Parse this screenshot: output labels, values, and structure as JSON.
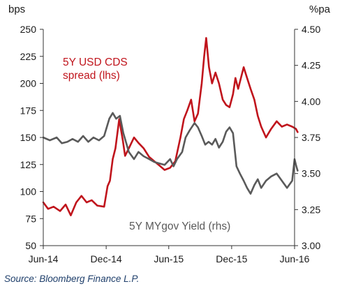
{
  "chart_data": {
    "type": "line",
    "left_unit": "bps",
    "right_unit": "%pa",
    "left_axis": {
      "min": 50,
      "max": 250,
      "ticks": [
        50,
        75,
        100,
        125,
        150,
        175,
        200,
        225,
        250
      ]
    },
    "right_axis": {
      "min": 3.0,
      "max": 4.5,
      "ticks": [
        "3.00",
        "3.25",
        "3.50",
        "3.75",
        "4.00",
        "4.25",
        "4.50"
      ]
    },
    "x_axis": {
      "start": "2014-06",
      "end": "2016-06",
      "ticks": [
        {
          "date": "2014-06",
          "label": "Jun-14"
        },
        {
          "date": "2014-12",
          "label": "Dec-14"
        },
        {
          "date": "2015-06",
          "label": "Jun-15"
        },
        {
          "date": "2015-12",
          "label": "Dec-15"
        },
        {
          "date": "2016-06",
          "label": "Jun-16"
        }
      ]
    },
    "grid": false,
    "series": [
      {
        "name": "5Y USD CDS spread (lhs)",
        "label_lines": [
          "5Y USD CDS",
          "spread (lhs)"
        ],
        "axis": "left",
        "color": "#c0141c",
        "points": [
          [
            "2014-06-01",
            90
          ],
          [
            "2014-06-15",
            84
          ],
          [
            "2014-07-01",
            86
          ],
          [
            "2014-07-20",
            82
          ],
          [
            "2014-08-05",
            88
          ],
          [
            "2014-08-20",
            78
          ],
          [
            "2014-09-05",
            90
          ],
          [
            "2014-09-20",
            96
          ],
          [
            "2014-10-05",
            90
          ],
          [
            "2014-10-20",
            92
          ],
          [
            "2014-11-05",
            87
          ],
          [
            "2014-11-25",
            86
          ],
          [
            "2014-12-05",
            105
          ],
          [
            "2014-12-12",
            110
          ],
          [
            "2014-12-20",
            130
          ],
          [
            "2014-12-28",
            140
          ],
          [
            "2015-01-08",
            167
          ],
          [
            "2015-01-18",
            148
          ],
          [
            "2015-01-25",
            133
          ],
          [
            "2015-02-05",
            140
          ],
          [
            "2015-02-20",
            150
          ],
          [
            "2015-03-05",
            145
          ],
          [
            "2015-03-20",
            140
          ],
          [
            "2015-04-05",
            132
          ],
          [
            "2015-04-20",
            128
          ],
          [
            "2015-05-05",
            124
          ],
          [
            "2015-05-20",
            120
          ],
          [
            "2015-06-05",
            122
          ],
          [
            "2015-06-20",
            128
          ],
          [
            "2015-07-05",
            150
          ],
          [
            "2015-07-15",
            167
          ],
          [
            "2015-07-25",
            175
          ],
          [
            "2015-08-05",
            185
          ],
          [
            "2015-08-15",
            165
          ],
          [
            "2015-08-25",
            172
          ],
          [
            "2015-09-05",
            200
          ],
          [
            "2015-09-12",
            225
          ],
          [
            "2015-09-18",
            242
          ],
          [
            "2015-09-26",
            215
          ],
          [
            "2015-10-05",
            200
          ],
          [
            "2015-10-15",
            210
          ],
          [
            "2015-10-25",
            200
          ],
          [
            "2015-11-05",
            185
          ],
          [
            "2015-11-15",
            180
          ],
          [
            "2015-11-25",
            178
          ],
          [
            "2015-12-05",
            190
          ],
          [
            "2015-12-12",
            205
          ],
          [
            "2015-12-20",
            195
          ],
          [
            "2016-01-05",
            215
          ],
          [
            "2016-01-15",
            205
          ],
          [
            "2016-01-25",
            195
          ],
          [
            "2016-02-05",
            185
          ],
          [
            "2016-02-15",
            170
          ],
          [
            "2016-02-25",
            160
          ],
          [
            "2016-03-10",
            150
          ],
          [
            "2016-03-25",
            158
          ],
          [
            "2016-04-10",
            165
          ],
          [
            "2016-04-25",
            160
          ],
          [
            "2016-05-10",
            162
          ],
          [
            "2016-05-25",
            160
          ],
          [
            "2016-06-05",
            158
          ],
          [
            "2016-06-10",
            155
          ]
        ]
      },
      {
        "name": "5Y MYgov Yield (rhs)",
        "label_lines": [
          "5Y MYgov Yield (rhs)"
        ],
        "axis": "right",
        "color": "#5a5a5a",
        "points": [
          [
            "2014-06-01",
            3.75
          ],
          [
            "2014-06-20",
            3.73
          ],
          [
            "2014-07-10",
            3.75
          ],
          [
            "2014-07-25",
            3.71
          ],
          [
            "2014-08-10",
            3.72
          ],
          [
            "2014-08-25",
            3.74
          ],
          [
            "2014-09-10",
            3.72
          ],
          [
            "2014-09-25",
            3.76
          ],
          [
            "2014-10-10",
            3.72
          ],
          [
            "2014-10-25",
            3.75
          ],
          [
            "2014-11-10",
            3.73
          ],
          [
            "2014-11-25",
            3.76
          ],
          [
            "2014-12-10",
            3.88
          ],
          [
            "2014-12-20",
            3.92
          ],
          [
            "2014-12-30",
            3.88
          ],
          [
            "2015-01-10",
            3.9
          ],
          [
            "2015-01-20",
            3.78
          ],
          [
            "2015-02-05",
            3.65
          ],
          [
            "2015-02-20",
            3.6
          ],
          [
            "2015-03-05",
            3.65
          ],
          [
            "2015-03-20",
            3.62
          ],
          [
            "2015-04-05",
            3.6
          ],
          [
            "2015-04-20",
            3.58
          ],
          [
            "2015-05-05",
            3.57
          ],
          [
            "2015-05-20",
            3.56
          ],
          [
            "2015-06-05",
            3.6
          ],
          [
            "2015-06-15",
            3.55
          ],
          [
            "2015-06-25",
            3.6
          ],
          [
            "2015-07-10",
            3.65
          ],
          [
            "2015-07-20",
            3.75
          ],
          [
            "2015-08-01",
            3.8
          ],
          [
            "2015-08-15",
            3.85
          ],
          [
            "2015-08-25",
            3.82
          ],
          [
            "2015-09-05",
            3.76
          ],
          [
            "2015-09-15",
            3.7
          ],
          [
            "2015-09-25",
            3.72
          ],
          [
            "2015-10-05",
            3.7
          ],
          [
            "2015-10-15",
            3.74
          ],
          [
            "2015-10-25",
            3.68
          ],
          [
            "2015-11-05",
            3.72
          ],
          [
            "2015-11-15",
            3.79
          ],
          [
            "2015-11-25",
            3.82
          ],
          [
            "2015-12-05",
            3.78
          ],
          [
            "2015-12-15",
            3.55
          ],
          [
            "2015-12-25",
            3.5
          ],
          [
            "2016-01-05",
            3.45
          ],
          [
            "2016-01-15",
            3.4
          ],
          [
            "2016-01-25",
            3.36
          ],
          [
            "2016-02-05",
            3.42
          ],
          [
            "2016-02-15",
            3.46
          ],
          [
            "2016-02-25",
            3.4
          ],
          [
            "2016-03-10",
            3.45
          ],
          [
            "2016-03-25",
            3.48
          ],
          [
            "2016-04-10",
            3.5
          ],
          [
            "2016-04-25",
            3.45
          ],
          [
            "2016-05-10",
            3.4
          ],
          [
            "2016-05-25",
            3.45
          ],
          [
            "2016-06-01",
            3.6
          ],
          [
            "2016-06-06",
            3.55
          ],
          [
            "2016-06-10",
            3.52
          ]
        ]
      }
    ]
  },
  "source": "Source: Bloomberg Finance L.P."
}
